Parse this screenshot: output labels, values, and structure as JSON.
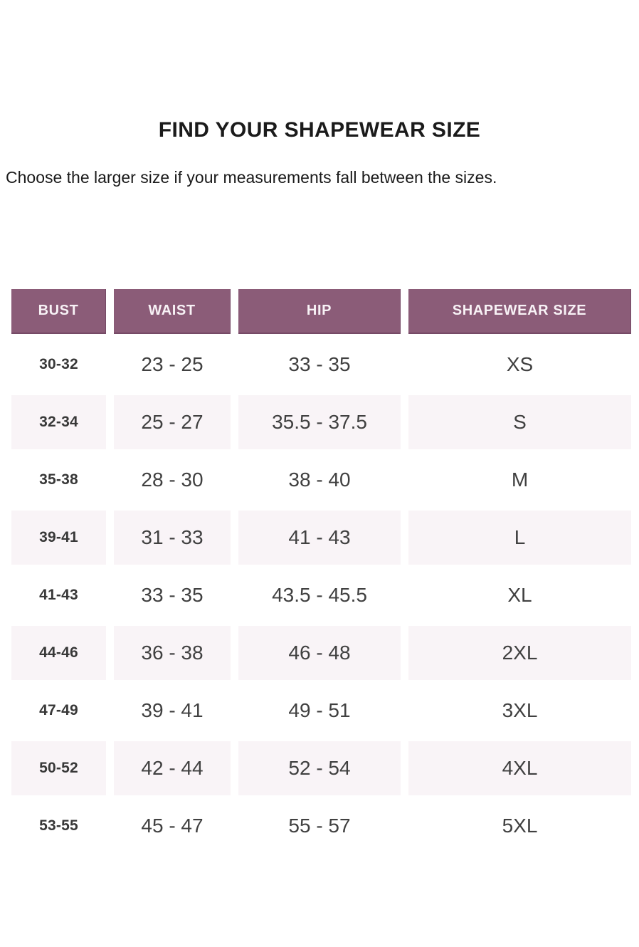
{
  "page": {
    "title": "FIND YOUR SHAPEWEAR SIZE",
    "subtitle": "Choose the larger size if your measurements fall between the sizes."
  },
  "colors": {
    "header_bg": "#8b5c78",
    "header_edge": "#754a66",
    "header_text": "#f8f2f6",
    "stripe_bg": "#f9f4f7",
    "title_text": "#1b1b1b",
    "cell_text": "#404040",
    "bust_text": "#383838"
  },
  "table": {
    "columns": [
      "BUST",
      "WAIST",
      "HIP",
      "SHAPEWEAR SIZE"
    ],
    "rows": [
      {
        "bust": "30-32",
        "waist": "23 - 25",
        "hip": "33 - 35",
        "size": "XS"
      },
      {
        "bust": "32-34",
        "waist": "25 - 27",
        "hip": "35.5 - 37.5",
        "size": "S"
      },
      {
        "bust": "35-38",
        "waist": "28 - 30",
        "hip": "38 - 40",
        "size": "M"
      },
      {
        "bust": "39-41",
        "waist": "31 - 33",
        "hip": "41 - 43",
        "size": "L"
      },
      {
        "bust": "41-43",
        "waist": "33 - 35",
        "hip": "43.5 - 45.5",
        "size": "XL"
      },
      {
        "bust": "44-46",
        "waist": "36 - 38",
        "hip": "46 - 48",
        "size": "2XL"
      },
      {
        "bust": "47-49",
        "waist": "39 - 41",
        "hip": "49 - 51",
        "size": "3XL"
      },
      {
        "bust": "50-52",
        "waist": "42 - 44",
        "hip": "52 - 54",
        "size": "4XL"
      },
      {
        "bust": "53-55",
        "waist": "45 - 47",
        "hip": "55 - 57",
        "size": "5XL"
      }
    ]
  },
  "chart_data": {
    "type": "table",
    "title": "FIND YOUR SHAPEWEAR SIZE",
    "columns": [
      "BUST",
      "WAIST",
      "HIP",
      "SHAPEWEAR SIZE"
    ],
    "rows": [
      [
        "30-32",
        "23 - 25",
        "33 - 35",
        "XS"
      ],
      [
        "32-34",
        "25 - 27",
        "35.5 - 37.5",
        "S"
      ],
      [
        "35-38",
        "28 - 30",
        "38 - 40",
        "M"
      ],
      [
        "39-41",
        "31 - 33",
        "41 - 43",
        "L"
      ],
      [
        "41-43",
        "33 - 35",
        "43.5 - 45.5",
        "XL"
      ],
      [
        "44-46",
        "36 - 38",
        "46 - 48",
        "2XL"
      ],
      [
        "47-49",
        "39 - 41",
        "49 - 51",
        "3XL"
      ],
      [
        "50-52",
        "42 - 44",
        "52 - 54",
        "4XL"
      ],
      [
        "53-55",
        "45 - 47",
        "55 - 57",
        "5XL"
      ]
    ]
  }
}
